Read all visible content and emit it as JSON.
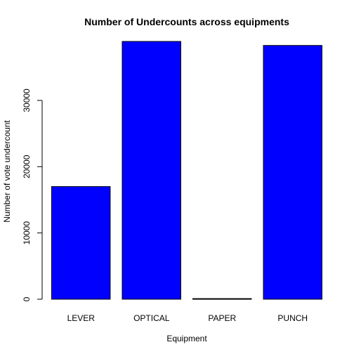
{
  "chart_data": {
    "type": "bar",
    "title": "Number of Undercounts across equipments",
    "xlabel": "Equipment",
    "ylabel": "Number of vote undercount",
    "categories": [
      "LEVER",
      "OPTICAL",
      "PAPER",
      "PUNCH"
    ],
    "values": [
      17000,
      38900,
      100,
      38300
    ],
    "ylim": [
      0,
      38900
    ],
    "yticks": [
      0,
      10000,
      20000,
      30000
    ],
    "ytick_labels": [
      "0",
      "10000",
      "20000",
      "30000"
    ],
    "bar_color": "#0000FF",
    "bar_border_color": "#000000",
    "grid": false,
    "legend": "none"
  }
}
